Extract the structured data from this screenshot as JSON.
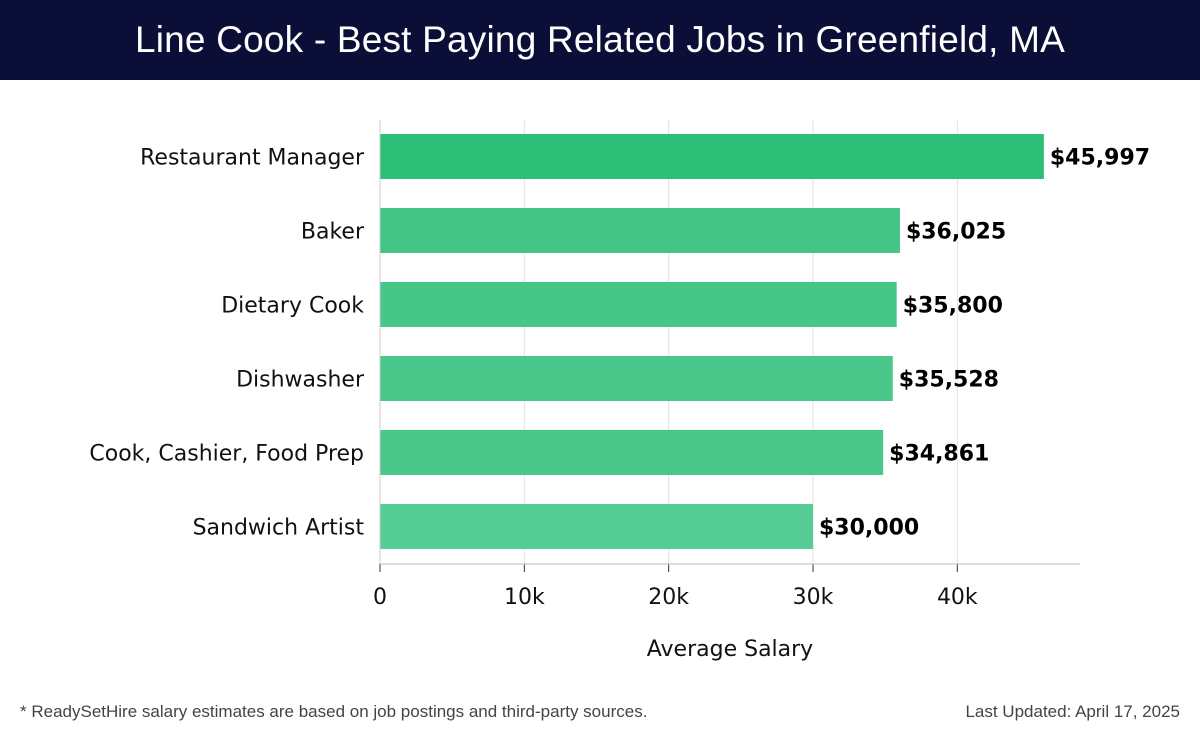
{
  "header": {
    "title": "Line Cook - Best Paying Related Jobs in Greenfield, MA",
    "background_color": "#0b0e36"
  },
  "footer": {
    "note": "* ReadySetHire salary estimates are based on job postings and third-party sources.",
    "updated": "Last Updated: April 17, 2025"
  },
  "chart_data": {
    "type": "bar",
    "orientation": "horizontal",
    "title": "Line Cook - Best Paying Related Jobs in Greenfield, MA",
    "xlabel": "Average Salary",
    "ylabel": "",
    "categories": [
      "Restaurant Manager",
      "Baker",
      "Dietary Cook",
      "Dishwasher",
      "Cook, Cashier, Food Prep",
      "Sandwich Artist"
    ],
    "values": [
      45997,
      36025,
      35800,
      35528,
      34861,
      30000
    ],
    "value_labels": [
      "$45,997",
      "$36,025",
      "$35,800",
      "$35,528",
      "$34,861",
      "$30,000"
    ],
    "xlim": [
      0,
      48500
    ],
    "xticks": [
      0,
      10000,
      20000,
      30000,
      40000
    ],
    "xtick_labels": [
      "0",
      "10k",
      "20k",
      "30k",
      "40k"
    ],
    "grid": true,
    "bar_colors": [
      "#2bbf77",
      "#43c588",
      "#47c68a",
      "#49c78b",
      "#4ac88c",
      "#56cc95"
    ]
  }
}
